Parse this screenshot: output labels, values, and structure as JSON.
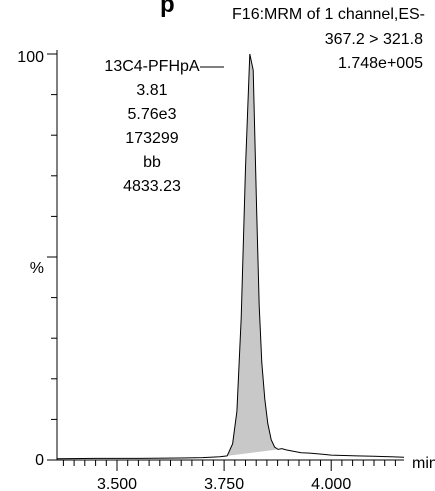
{
  "chart_data": {
    "type": "line",
    "title_partial": "p",
    "header_lines": [
      "F16:MRM of 1 channel,ES-",
      "367.2 > 321.8",
      "1.748e+005"
    ],
    "xlabel": "min",
    "xlim": [
      3.36,
      4.17
    ],
    "ylim": [
      0,
      100
    ],
    "x_ticks": [
      3.5,
      3.75,
      4.0
    ],
    "x_tick_labels": [
      "3.500",
      "3.750",
      "4.000"
    ],
    "y_tick_labels": {
      "top": "100",
      "mid": "%",
      "bottom": "0"
    },
    "peak_fill_color": "#c8c8c8",
    "peak_fill_range": [
      3.757,
      3.876
    ],
    "peak_annotation": [
      "13C4-PFHpA",
      "3.81",
      "5.76e3",
      "173299",
      "bb",
      "4833.23"
    ],
    "series": [
      {
        "x": [
          3.36,
          3.45,
          3.55,
          3.65,
          3.7,
          3.74,
          3.757,
          3.77,
          3.78,
          3.79,
          3.8,
          3.81,
          3.818,
          3.826,
          3.832,
          3.838,
          3.845,
          3.852,
          3.86,
          3.868,
          3.876,
          3.885,
          3.895,
          3.91,
          3.93,
          3.95,
          3.98,
          4.0,
          4.03,
          4.06,
          4.1,
          4.14,
          4.17
        ],
        "y": [
          0.3,
          0.4,
          0.4,
          0.5,
          0.6,
          0.8,
          1.0,
          4.0,
          12.0,
          35.0,
          72.0,
          100.0,
          96.0,
          62.0,
          38.0,
          24.0,
          15.0,
          9.0,
          5.0,
          3.2,
          2.6,
          2.8,
          2.5,
          2.2,
          1.8,
          1.7,
          1.4,
          1.2,
          1.1,
          1.0,
          0.9,
          0.8,
          0.7
        ]
      }
    ]
  }
}
